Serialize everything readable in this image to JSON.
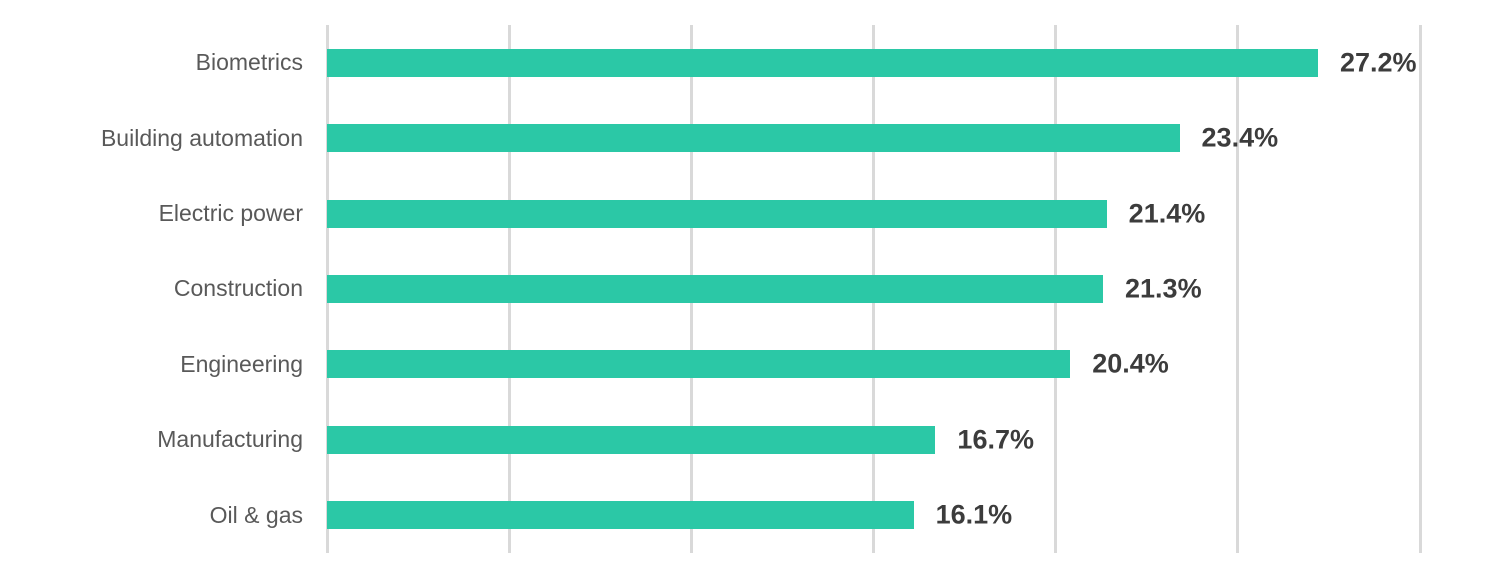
{
  "chart_data": {
    "type": "bar",
    "orientation": "horizontal",
    "title": "",
    "xlabel": "",
    "ylabel": "",
    "categories": [
      "Biometrics",
      "Building automation",
      "Electric power",
      "Construction",
      "Engineering",
      "Manufacturing",
      "Oil & gas"
    ],
    "values": [
      27.2,
      23.4,
      21.4,
      21.3,
      20.4,
      16.7,
      16.1
    ],
    "value_labels": [
      "27.2%",
      "23.4%",
      "21.4%",
      "21.3%",
      "20.4%",
      "16.7%",
      "16.1%"
    ],
    "xlim": [
      0,
      30
    ],
    "gridline_step": 5,
    "grid": true,
    "legend": false,
    "colors": {
      "bar": "#2BC8A6",
      "gridline": "#D9D9D9",
      "category_label": "#595959",
      "value_label": "#3C3C3C",
      "background": "#FFFFFF"
    }
  }
}
